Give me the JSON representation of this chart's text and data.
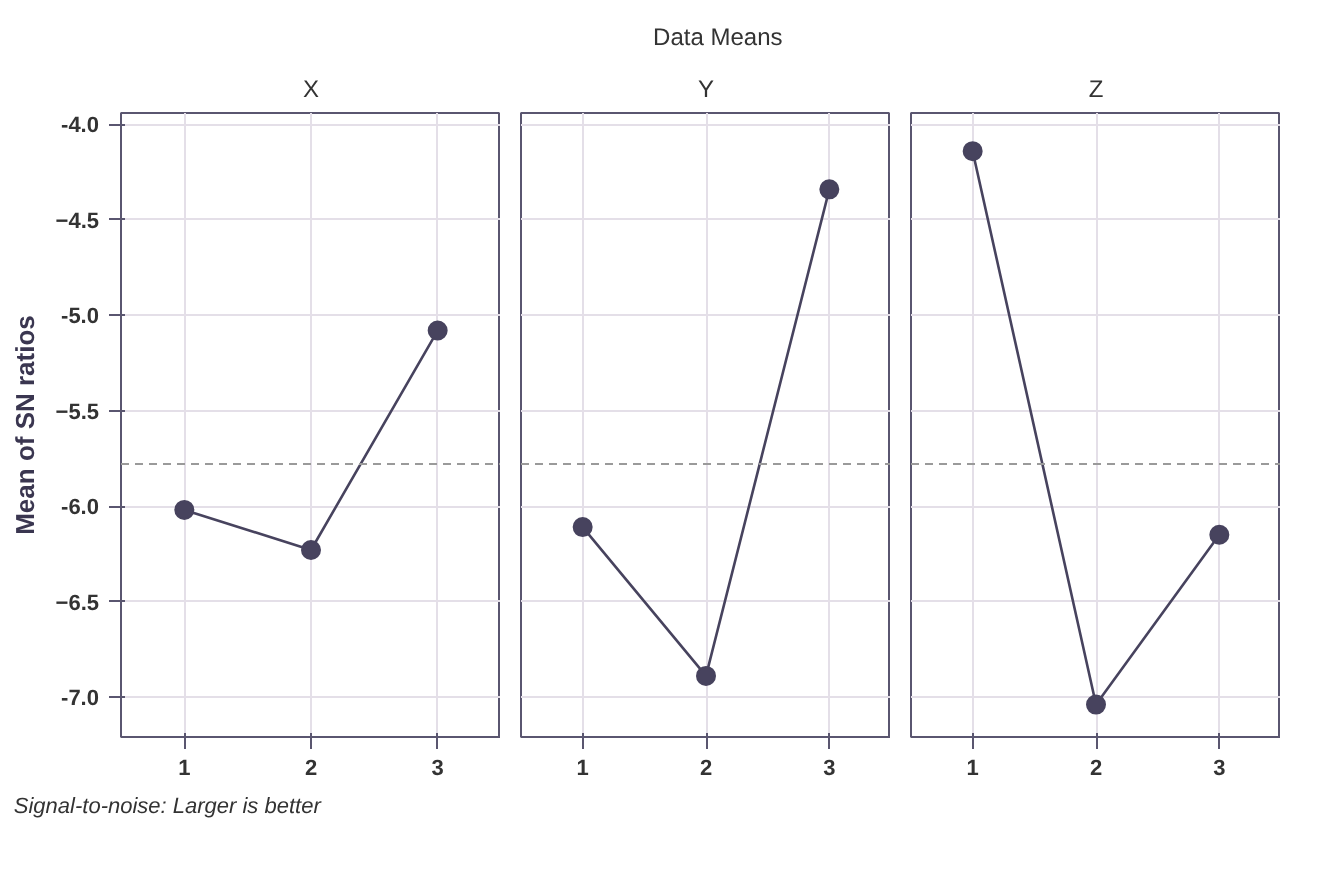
{
  "chart_data": [
    {
      "type": "line",
      "title": "X",
      "ylabel": "Mean of SN ratios",
      "categories": [
        "1",
        "2",
        "3"
      ],
      "values": [
        -6.02,
        -6.23,
        -5.08
      ],
      "color": "#47435e",
      "marker": "circle",
      "ylim": [
        -7.21,
        -3.94
      ],
      "yticks": [
        {
          "value": -4.0,
          "label": "-4.0"
        },
        -4.5,
        {
          "value": -5.0,
          "label": "-5.0"
        },
        -5.5,
        {
          "value": -6.0,
          "label": "-6.0"
        },
        -6.5,
        {
          "value": -7.0,
          "label": "-7.0"
        }
      ],
      "grid": true,
      "ref_lines": [
        {
          "axis": "y",
          "value": -5.78,
          "line_style": "dashed",
          "color": "#9a9a9a"
        }
      ],
      "annotations": [
        "Data Means",
        "Signal-to-noise: Larger is better"
      ]
    },
    {
      "type": "line",
      "title": "Y",
      "categories": [
        "1",
        "2",
        "3"
      ],
      "values": [
        -6.11,
        -6.89,
        -4.34
      ],
      "color": "#47435e",
      "marker": "circle",
      "ylim": [
        -7.21,
        -3.94
      ],
      "yticks": [
        -4,
        -4.5,
        -5,
        -5.5,
        -6,
        -6.5,
        -7
      ],
      "grid": true,
      "tick_labels": "x",
      "ref_lines": [
        {
          "axis": "y",
          "value": -5.78,
          "line_style": "dashed",
          "color": "#9a9a9a"
        }
      ]
    },
    {
      "type": "line",
      "title": "Z",
      "categories": [
        "1",
        "2",
        "3"
      ],
      "values": [
        -4.14,
        -7.04,
        -6.15
      ],
      "color": "#47435e",
      "marker": "circle",
      "ylim": [
        -7.21,
        -3.94
      ],
      "yticks": [
        -4,
        -4.5,
        -5,
        -5.5,
        -6,
        -6.5,
        -7
      ],
      "grid": true,
      "tick_labels": "x",
      "ref_lines": [
        {
          "axis": "y",
          "value": -5.78,
          "line_style": "dashed",
          "color": "#9a9a9a"
        }
      ]
    }
  ]
}
